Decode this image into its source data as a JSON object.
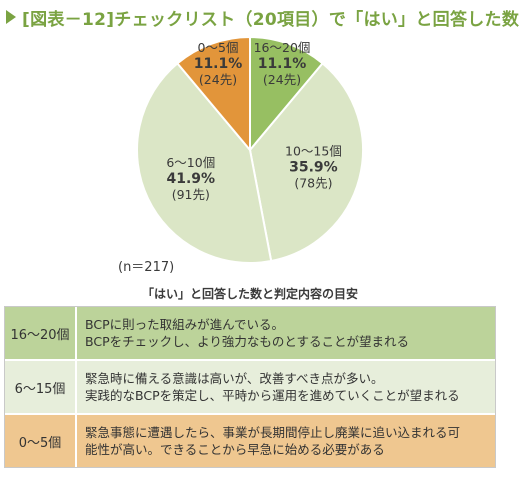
{
  "title": "[図表－12]チェックリスト（20項目）で「はい」と回答した数",
  "note": "(n＝217)",
  "colors": {
    "accent": "#7aa342",
    "slice_16_20": "#97bf62",
    "slice_10_15": "#dbe6c6",
    "slice_6_10": "#dbe6c6",
    "slice_0_5": "#e2953a",
    "row_16_20": "#bcd39a",
    "row_6_15": "#e7eedb",
    "row_0_5": "#efc790"
  },
  "chart_data": {
    "type": "pie",
    "title": "[図表－12]チェックリスト（20項目）で「はい」と回答した数",
    "slices": [
      {
        "label": "16～20個",
        "percent": 11.1,
        "percent_text": "11.1%",
        "count": 24,
        "count_text": "(24先)"
      },
      {
        "label": "10～15個",
        "percent": 35.9,
        "percent_text": "35.9%",
        "count": 78,
        "count_text": "(78先)"
      },
      {
        "label": "6～10個",
        "percent": 41.9,
        "percent_text": "41.9%",
        "count": 91,
        "count_text": "(91先)"
      },
      {
        "label": "0～5個",
        "percent": 11.1,
        "percent_text": "11.1%",
        "count": 24,
        "count_text": "(24先)"
      }
    ],
    "total_note": "(n＝217)"
  },
  "table": {
    "title": "「はい」と回答した数と判定内容の目安",
    "rows": [
      {
        "range": "16～20個",
        "lines": [
          "BCPに則った取組みが進んでいる。",
          "BCPをチェックし、より強力なものとすることが望まれる"
        ]
      },
      {
        "range": "6～15個",
        "lines": [
          "緊急時に備える意識は高いが、改善すべき点が多い。",
          "実践的なBCPを策定し、平時から運用を進めていくことが望まれる"
        ]
      },
      {
        "range": "0～5個",
        "lines": [
          "緊急事態に遭遇したら、事業が長期間停止し廃業に追い込まれる可",
          "能性が高い。できることから早急に始める必要がある"
        ]
      }
    ]
  }
}
